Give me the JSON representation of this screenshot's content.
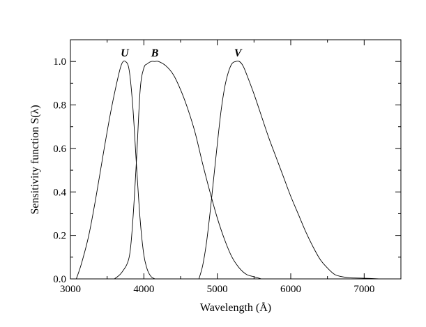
{
  "chart_data": {
    "type": "line",
    "xlabel": "Wavelength (Å)",
    "ylabel": "Sensitivity function S(λ)",
    "xlim": [
      3000,
      7500
    ],
    "ylim": [
      0.0,
      1.1
    ],
    "x_ticks": [
      "3000",
      "4000",
      "5000",
      "6000",
      "7000"
    ],
    "y_ticks": [
      "0.0",
      "0.2",
      "0.4",
      "0.6",
      "0.8",
      "1.0"
    ],
    "grid": false,
    "legend": "none",
    "series": [
      {
        "name": "U",
        "x": [
          3080,
          3150,
          3250,
          3350,
          3450,
          3550,
          3650,
          3700,
          3750,
          3800,
          3850,
          3900,
          3950,
          4000,
          4050,
          4100,
          4150
        ],
        "y": [
          0.0,
          0.07,
          0.2,
          0.38,
          0.58,
          0.77,
          0.93,
          0.99,
          1.0,
          0.96,
          0.79,
          0.52,
          0.27,
          0.11,
          0.04,
          0.01,
          0.0
        ]
      },
      {
        "name": "B",
        "x": [
          3600,
          3700,
          3800,
          3850,
          3900,
          3950,
          4000,
          4050,
          4100,
          4150,
          4200,
          4300,
          4400,
          4500,
          4600,
          4700,
          4800,
          4900,
          5000,
          5100,
          5200,
          5300,
          5400,
          5500,
          5600
        ],
        "y": [
          0.0,
          0.03,
          0.1,
          0.27,
          0.55,
          0.87,
          0.97,
          0.99,
          1.0,
          1.0,
          1.0,
          0.98,
          0.94,
          0.87,
          0.78,
          0.67,
          0.53,
          0.4,
          0.28,
          0.18,
          0.1,
          0.05,
          0.02,
          0.01,
          0.0
        ]
      },
      {
        "name": "V",
        "x": [
          4750,
          4800,
          4850,
          4900,
          4950,
          5000,
          5050,
          5100,
          5150,
          5200,
          5250,
          5300,
          5350,
          5400,
          5500,
          5600,
          5700,
          5800,
          5900,
          6000,
          6100,
          6200,
          6300,
          6400,
          6500,
          6600,
          6700,
          6800,
          7000,
          7200
        ],
        "y": [
          0.0,
          0.06,
          0.16,
          0.3,
          0.46,
          0.62,
          0.77,
          0.88,
          0.95,
          0.99,
          1.0,
          1.0,
          0.98,
          0.94,
          0.85,
          0.75,
          0.65,
          0.56,
          0.47,
          0.38,
          0.3,
          0.22,
          0.15,
          0.09,
          0.05,
          0.02,
          0.01,
          0.005,
          0.003,
          0.0
        ]
      }
    ],
    "annotations": [
      {
        "text": "U",
        "x": 3740,
        "y": 1.03
      },
      {
        "text": "B",
        "x": 4150,
        "y": 1.03
      },
      {
        "text": "V",
        "x": 5280,
        "y": 1.03
      }
    ]
  }
}
